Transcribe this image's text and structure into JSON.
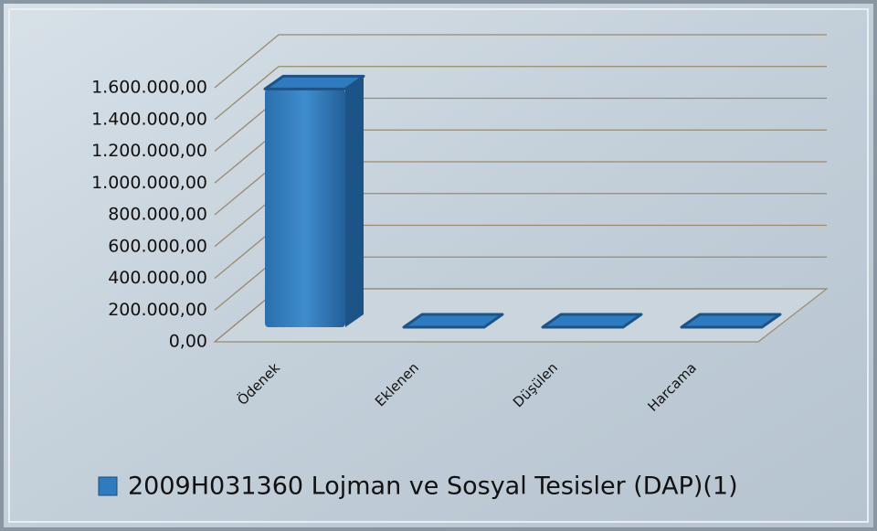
{
  "chart_data": {
    "type": "bar3d",
    "categories": [
      "Ödenek",
      "Eklenen",
      "Düşülen",
      "Harcama"
    ],
    "series": [
      {
        "name": "2009H031360 Lojman ve Sosyal Tesisler (DAP)(1)",
        "color": "#2f7bbf",
        "values": [
          1500000,
          0,
          0,
          0
        ]
      }
    ],
    "ylim": [
      0,
      1600000
    ],
    "yticks": [
      {
        "value": 0,
        "label": "0,00"
      },
      {
        "value": 200000,
        "label": "200.000,00"
      },
      {
        "value": 400000,
        "label": "400.000,00"
      },
      {
        "value": 600000,
        "label": "600.000,00"
      },
      {
        "value": 800000,
        "label": "800.000,00"
      },
      {
        "value": 1000000,
        "label": "1.000.000,00"
      },
      {
        "value": 1200000,
        "label": "1.200.000,00"
      },
      {
        "value": 1400000,
        "label": "1.400.000,00"
      },
      {
        "value": 1600000,
        "label": "1.600.000,00"
      }
    ],
    "grid": true,
    "legend": "bottom"
  }
}
